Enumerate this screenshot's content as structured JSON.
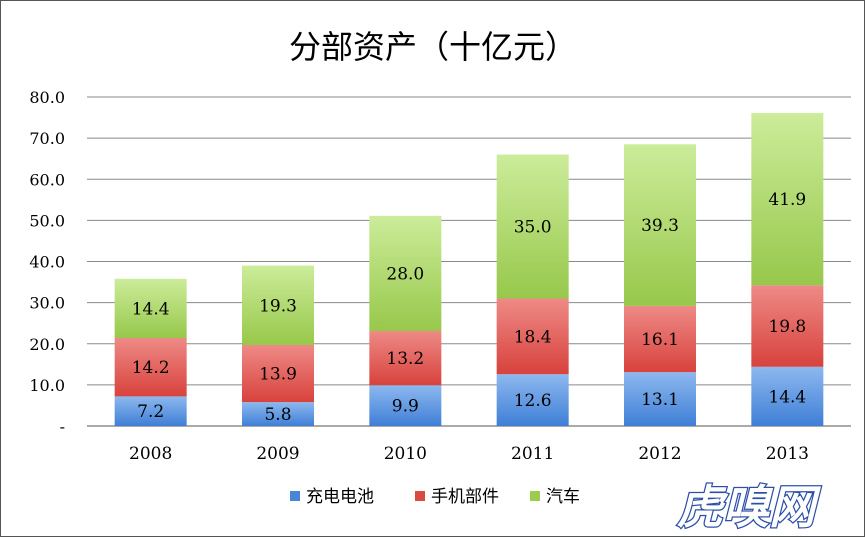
{
  "chart_data": {
    "type": "bar",
    "stacked": true,
    "title": "分部资产（十亿元）",
    "categories": [
      "2008",
      "2009",
      "2010",
      "2011",
      "2012",
      "2013"
    ],
    "series": [
      {
        "name": "充电电池",
        "values": [
          7.2,
          5.8,
          9.9,
          12.6,
          13.1,
          14.4
        ],
        "color": "#4a86d8"
      },
      {
        "name": "手机部件",
        "values": [
          14.2,
          13.9,
          13.2,
          18.4,
          16.1,
          19.8
        ],
        "color": "#d94a45"
      },
      {
        "name": "汽车",
        "values": [
          14.4,
          19.3,
          28.0,
          35.0,
          39.3,
          41.9
        ],
        "color": "#9ccc4e"
      }
    ],
    "yticks": [
      "-",
      "10.0",
      "20.0",
      "30.0",
      "40.0",
      "50.0",
      "60.0",
      "70.0",
      "80.0"
    ],
    "ylim": [
      0,
      80
    ],
    "grid": true,
    "legend_position": "bottom"
  },
  "watermark": "虎嗅网"
}
